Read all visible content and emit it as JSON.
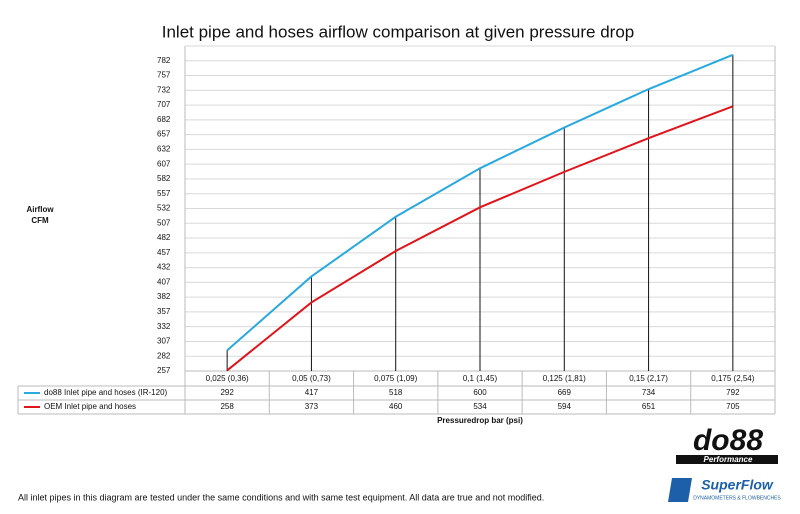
{
  "chart_data": {
    "type": "line",
    "title": "Inlet pipe and hoses airflow comparison at given pressure drop",
    "y_label": [
      "Airflow",
      "CFM"
    ],
    "x_label": "Pressuredrop bar (psi)",
    "categories": [
      "0,025 (0,36)",
      "0,05 (0,73)",
      "0,075 (1,09)",
      "0,1 (1,45)",
      "0,125 (1,81)",
      "0,15 (2,17)",
      "0,175 (2,54)"
    ],
    "series": [
      {
        "name": "do88 Inlet pipe and hoses (IR-120)",
        "color": "#29a9e0",
        "values": [
          292,
          417,
          518,
          600,
          669,
          734,
          792
        ]
      },
      {
        "name": "OEM Inlet pipe and hoses",
        "color": "#e0141b",
        "values": [
          258,
          373,
          460,
          534,
          594,
          651,
          705
        ]
      }
    ],
    "ylim": [
      257,
      807
    ],
    "yticks": [
      257,
      282,
      307,
      332,
      357,
      382,
      407,
      432,
      457,
      482,
      507,
      532,
      557,
      582,
      607,
      632,
      657,
      682,
      707,
      732,
      757,
      782
    ],
    "grid": true
  },
  "footnote": "All inlet pipes in this diagram are tested under the same conditions and with same test equipment. All data are true and not modified.",
  "logos": {
    "do88": "do88",
    "do88_sub": "Performance",
    "superflow": "SuperFlow",
    "superflow_sub": "DYNAMOMETERS & FLOWBENCHES"
  }
}
